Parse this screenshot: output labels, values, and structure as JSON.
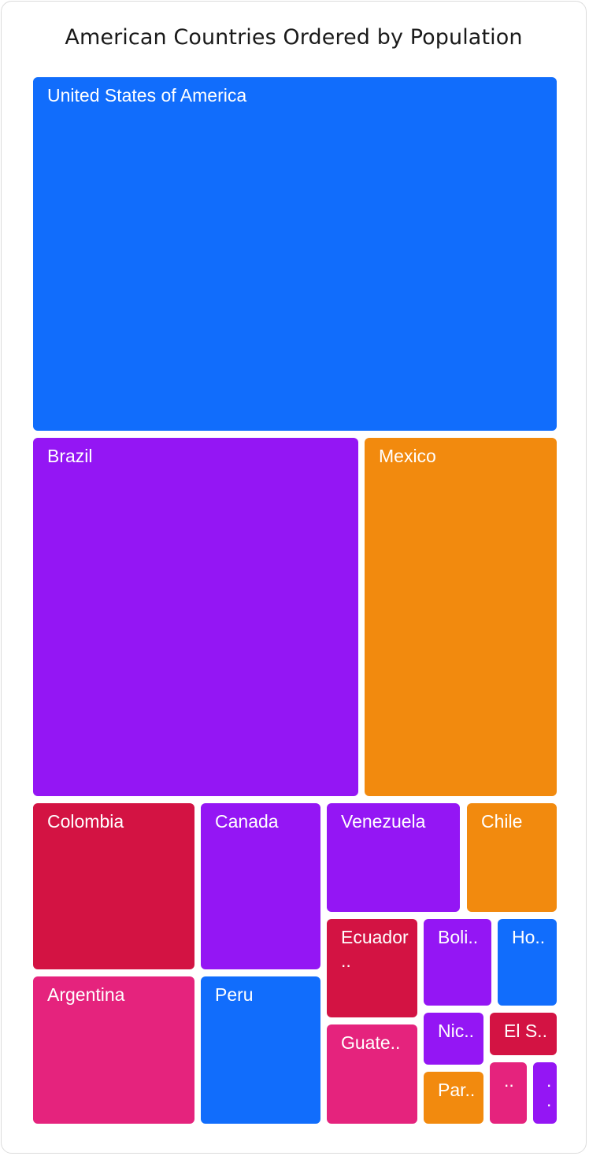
{
  "chart_data": {
    "type": "treemap",
    "title": "American Countries Ordered by Population",
    "tiles": [
      {
        "label": "United States of America",
        "color": "#116DFC"
      },
      {
        "label": "Brazil",
        "color": "#9416F4"
      },
      {
        "label": "Mexico",
        "color": "#F28A0E"
      },
      {
        "label": "Colombia",
        "color": "#D31343"
      },
      {
        "label": "Canada",
        "color": "#9416F4"
      },
      {
        "label": "Venezuela",
        "color": "#9416F4"
      },
      {
        "label": "Chile",
        "color": "#F28A0E"
      },
      {
        "label": "Argentina",
        "color": "#E5237D"
      },
      {
        "label": "Peru",
        "color": "#116DFC"
      },
      {
        "label": "Ecuador ..",
        "color": "#D31343"
      },
      {
        "label": "Boli..",
        "color": "#9416F4"
      },
      {
        "label": "Ho..",
        "color": "#116DFC"
      },
      {
        "label": "Guate..",
        "color": "#E5237D"
      },
      {
        "label": "Nic..",
        "color": "#9416F4"
      },
      {
        "label": "El S..",
        "color": "#D31343"
      },
      {
        "label": "Par..",
        "color": "#F28A0E"
      },
      {
        "label": "..",
        "color": "#E5237D"
      },
      {
        "label": ". .",
        "color": "#9416F4"
      }
    ]
  }
}
